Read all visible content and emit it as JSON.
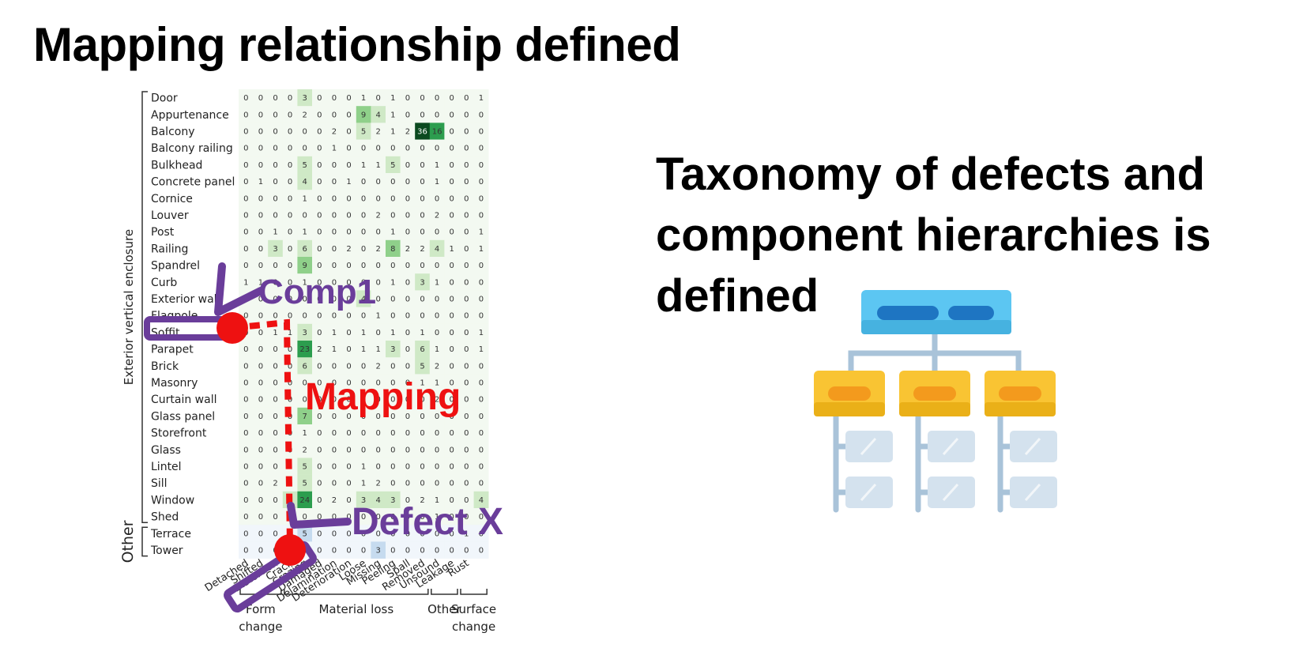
{
  "title": "Mapping relationship defined",
  "taxonomy_text": [
    "Taxonomy of defects and",
    "component hierarchies is",
    "defined"
  ],
  "labels": {
    "comp1": "Comp1",
    "mapping": "Mapping",
    "defect_x": "Defect X"
  },
  "colors": {
    "annotation_purple": "#6a3d9a",
    "mapping_red": "#ee1111",
    "green_scale": [
      "#f3f9f1",
      "#cfe9c6",
      "#8fd08a",
      "#2c9d4e",
      "#0b4a1f"
    ],
    "blue_scale": [
      "#f1f6fb",
      "#c6dbef",
      "#5a9fd4",
      "#1b5a9e",
      "#08306b"
    ],
    "hierarchy_top": "#5cc6f2",
    "hierarchy_mid": "#f9c433",
    "hierarchy_leaf": "#d4e2ee"
  },
  "chart_data": {
    "type": "heatmap",
    "y_groups": [
      {
        "name": "Exterior vertical enclosure",
        "start": 0,
        "end": 25
      },
      {
        "name": "Other",
        "start": 26,
        "end": 27
      }
    ],
    "x_groups": [
      {
        "name": "Form\nchange",
        "start": 0,
        "end": 2
      },
      {
        "name": "Material loss",
        "start": 3,
        "end": 12
      },
      {
        "name": "Other",
        "start": 13,
        "end": 14
      },
      {
        "name": "Surface\nchange",
        "start": 15,
        "end": 16
      }
    ],
    "columns": [
      "Detached",
      "Shifted",
      "Distortion",
      "Crack",
      "Crazing",
      "Damaged",
      "Delamination",
      "Deterioration",
      "Loose",
      "Missing",
      "Peeling",
      "Spall",
      "Removed",
      "Unsound",
      "Leakage",
      "Rust",
      ""
    ],
    "rows": [
      "Door",
      "Appurtenance",
      "Balcony",
      "Balcony railing",
      "Bulkhead",
      "Concrete panel",
      "Cornice",
      "Louver",
      "Post",
      "Railing",
      "Spandrel",
      "Curb",
      "Exterior wall",
      "Flagpole",
      "Soffit",
      "Parapet",
      "Brick",
      "Masonry",
      "Curtain wall",
      "Glass panel",
      "Storefront",
      "Glass",
      "Lintel",
      "Sill",
      "Window",
      "Shed",
      "Terrace",
      "Tower"
    ],
    "values": [
      [
        0,
        0,
        0,
        0,
        3,
        0,
        0,
        0,
        1,
        0,
        1,
        0,
        0,
        0,
        0,
        0,
        1
      ],
      [
        0,
        0,
        0,
        0,
        2,
        0,
        0,
        0,
        9,
        4,
        1,
        0,
        0,
        0,
        0,
        0,
        0
      ],
      [
        0,
        0,
        0,
        0,
        0,
        0,
        2,
        0,
        5,
        2,
        1,
        2,
        36,
        16,
        0,
        0,
        0
      ],
      [
        0,
        0,
        0,
        0,
        0,
        0,
        1,
        0,
        0,
        0,
        0,
        0,
        0,
        0,
        0,
        0,
        0
      ],
      [
        0,
        0,
        0,
        0,
        5,
        0,
        0,
        0,
        1,
        1,
        5,
        0,
        0,
        1,
        0,
        0,
        0
      ],
      [
        0,
        1,
        0,
        0,
        4,
        0,
        0,
        1,
        0,
        0,
        0,
        0,
        0,
        1,
        0,
        0,
        0
      ],
      [
        0,
        0,
        0,
        0,
        1,
        0,
        0,
        0,
        0,
        0,
        0,
        0,
        0,
        0,
        0,
        0,
        0
      ],
      [
        0,
        0,
        0,
        0,
        0,
        0,
        0,
        0,
        0,
        2,
        0,
        0,
        0,
        2,
        0,
        0,
        0
      ],
      [
        0,
        0,
        1,
        0,
        1,
        0,
        0,
        0,
        0,
        0,
        1,
        0,
        0,
        0,
        0,
        0,
        1
      ],
      [
        0,
        0,
        3,
        0,
        6,
        0,
        0,
        2,
        0,
        2,
        8,
        2,
        2,
        4,
        1,
        0,
        1
      ],
      [
        0,
        0,
        0,
        0,
        9,
        0,
        0,
        0,
        0,
        0,
        0,
        0,
        0,
        0,
        0,
        0,
        0
      ],
      [
        1,
        1,
        0,
        0,
        1,
        0,
        0,
        0,
        0,
        0,
        1,
        0,
        3,
        1,
        0,
        0,
        0
      ],
      [
        0,
        0,
        0,
        0,
        0,
        0,
        0,
        0,
        4,
        0,
        0,
        0,
        0,
        0,
        0,
        0,
        0
      ],
      [
        0,
        0,
        0,
        0,
        0,
        0,
        0,
        0,
        0,
        1,
        0,
        0,
        0,
        0,
        0,
        0,
        0
      ],
      [
        0,
        0,
        1,
        1,
        3,
        0,
        1,
        0,
        1,
        0,
        1,
        0,
        1,
        0,
        0,
        0,
        1
      ],
      [
        0,
        0,
        0,
        0,
        23,
        2,
        1,
        0,
        1,
        1,
        3,
        0,
        6,
        1,
        0,
        0,
        1
      ],
      [
        0,
        0,
        0,
        0,
        6,
        0,
        0,
        0,
        0,
        2,
        0,
        0,
        5,
        2,
        0,
        0,
        0
      ],
      [
        0,
        0,
        0,
        0,
        0,
        0,
        0,
        0,
        0,
        0,
        0,
        0,
        1,
        1,
        0,
        0,
        0
      ],
      [
        0,
        0,
        0,
        0,
        0,
        0,
        0,
        0,
        0,
        0,
        0,
        0,
        0,
        2,
        0,
        0,
        0
      ],
      [
        0,
        0,
        0,
        0,
        7,
        0,
        0,
        0,
        0,
        0,
        0,
        0,
        0,
        0,
        0,
        0,
        0
      ],
      [
        0,
        0,
        0,
        0,
        1,
        0,
        0,
        0,
        0,
        0,
        0,
        0,
        0,
        0,
        0,
        0,
        0
      ],
      [
        0,
        0,
        0,
        0,
        2,
        0,
        0,
        0,
        0,
        0,
        0,
        0,
        0,
        0,
        0,
        0,
        0
      ],
      [
        0,
        0,
        0,
        2,
        5,
        0,
        0,
        0,
        1,
        0,
        0,
        0,
        0,
        0,
        0,
        0,
        0
      ],
      [
        0,
        0,
        2,
        0,
        5,
        0,
        0,
        0,
        1,
        2,
        0,
        0,
        0,
        0,
        0,
        0,
        0
      ],
      [
        0,
        0,
        0,
        3,
        24,
        0,
        2,
        0,
        3,
        4,
        3,
        0,
        2,
        1,
        0,
        0,
        4
      ],
      [
        0,
        0,
        0,
        0,
        0,
        0,
        0,
        0,
        0,
        0,
        0,
        0,
        0,
        1,
        0,
        0,
        0
      ],
      [
        0,
        0,
        0,
        0,
        5,
        0,
        0,
        0,
        0,
        0,
        0,
        0,
        0,
        0,
        0,
        1,
        0
      ],
      [
        0,
        0,
        0,
        0,
        0,
        0,
        0,
        0,
        0,
        3,
        0,
        0,
        0,
        0,
        0,
        0,
        0
      ]
    ]
  }
}
